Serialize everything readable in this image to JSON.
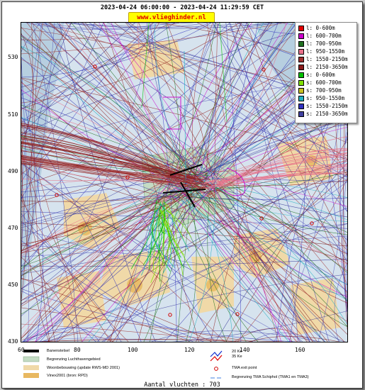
{
  "header": {
    "date_range": "2023-04-24 06:00:00 - 2023-04-24 11:29:59 CET",
    "site_url": "www.vlieghinder.nl"
  },
  "axes": {
    "y_ticks": [
      "530",
      "510",
      "490",
      "470",
      "450",
      "430"
    ],
    "x_ticks": [
      "60",
      "80",
      "100",
      "120",
      "140",
      "160"
    ]
  },
  "legend": {
    "items": [
      {
        "label": "l: 0-600m",
        "color": "#e00000"
      },
      {
        "label": "l: 600-700m",
        "color": "#cc00cc"
      },
      {
        "label": "l: 700-950m",
        "color": "#207020"
      },
      {
        "label": "l: 950-1550m",
        "color": "#e8708a"
      },
      {
        "label": "l: 1550-2150m",
        "color": "#a03030"
      },
      {
        "label": "l: 2150-3650m",
        "color": "#8b1a1a"
      },
      {
        "label": "s: 0-600m",
        "color": "#00c000"
      },
      {
        "label": "s: 600-700m",
        "color": "#80e000"
      },
      {
        "label": "s: 700-950m",
        "color": "#c8c020"
      },
      {
        "label": "s: 950-1550m",
        "color": "#20b0c0"
      },
      {
        "label": "s: 1550-2150m",
        "color": "#3030c0"
      },
      {
        "label": "s: 2150-3650m",
        "color": "#4040a0"
      }
    ]
  },
  "map_legend": {
    "runway": "Banenstelsel",
    "airport_boundary": "Begrenzing Luchthavengebied",
    "housing": "Woonbebouwing (update RWS-MD 2001)",
    "vinex": "Vinex2001 (bron: RPD)",
    "ke_20": "20 Ke",
    "ke_35": "35 Ke",
    "tma_exit": "TMA exit point",
    "tma_boundary": "Begrenzing TMA Schiphol  (TMA1 en TMA3)"
  },
  "footer": {
    "flight_count": "Aantal vluchten : 703"
  }
}
